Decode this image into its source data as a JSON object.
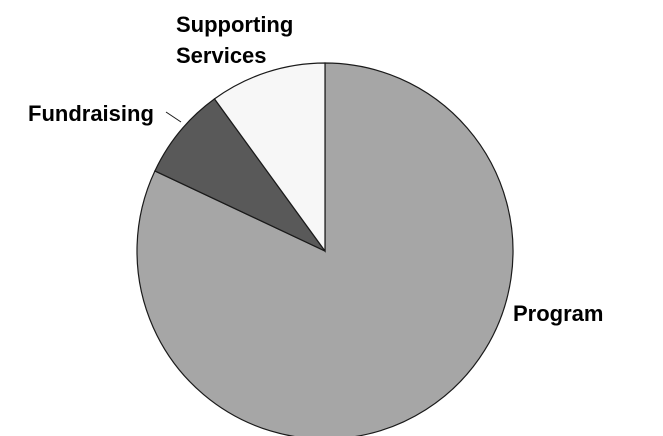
{
  "chart_data": {
    "type": "pie",
    "title": "",
    "slices": [
      {
        "label": "Program",
        "value": 82,
        "color": "#a6a6a6"
      },
      {
        "label": "Fundraising",
        "value": 8,
        "color": "#595959"
      },
      {
        "label": "Supporting Services",
        "value": 10,
        "color": "#f7f7f7"
      }
    ],
    "legend": "none"
  }
}
